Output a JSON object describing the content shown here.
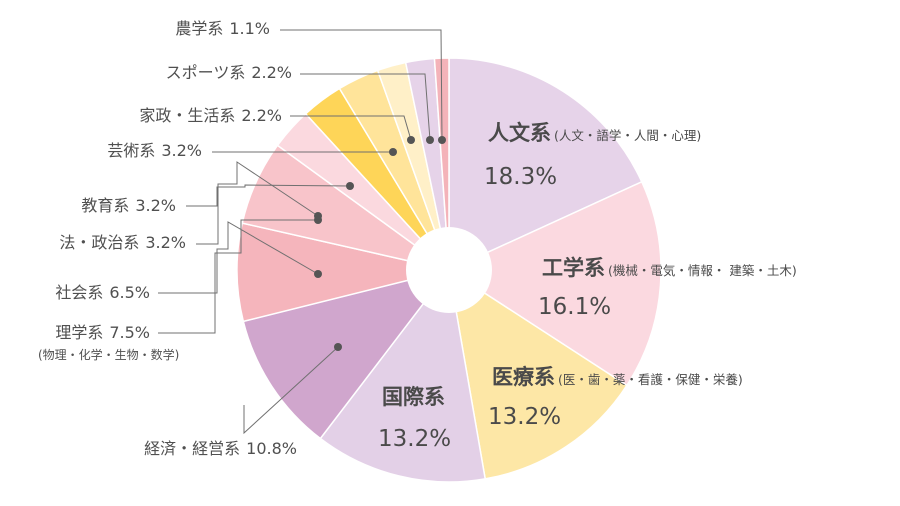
{
  "chart_data": {
    "type": "pie",
    "variant": "donut",
    "start_angle_deg": 0,
    "direction": "clockwise",
    "slices": [
      {
        "label": "人文系",
        "note": "(人文・語学・人間・心理)",
        "value": 18.3,
        "value_text": "18.3%",
        "color": "#e6d3e9"
      },
      {
        "label": "工学系",
        "note": "(機械・電気・情報・ 建築・土木)",
        "value": 16.1,
        "value_text": "16.1%",
        "color": "#fbd9e0"
      },
      {
        "label": "医療系",
        "note": "(医・歯・薬・看護・保健・栄養)",
        "value": 13.2,
        "value_text": "13.2%",
        "color": "#fde7a6"
      },
      {
        "label": "国際系",
        "note": "",
        "value": 13.2,
        "value_text": "13.2%",
        "color": "#e3d0e7"
      },
      {
        "label": "経済・経営系",
        "note": "",
        "value": 10.8,
        "value_text": "10.8%",
        "color": "#d0a6cd"
      },
      {
        "label": "理学系",
        "note": "(物理・化学・生物・数学)",
        "value": 7.5,
        "value_text": "7.5%",
        "color": "#f5b5bc"
      },
      {
        "label": "社会系",
        "note": "",
        "value": 6.5,
        "value_text": "6.5%",
        "color": "#f8c4ca"
      },
      {
        "label": "法・政治系",
        "note": "",
        "value": 3.2,
        "value_text": "3.2%",
        "color": "#fbd9df"
      },
      {
        "label": "教育系",
        "note": "",
        "value": 3.2,
        "value_text": "3.2%",
        "color": "#fed558"
      },
      {
        "label": "芸術系",
        "note": "",
        "value": 3.2,
        "value_text": "3.2%",
        "color": "#ffe49a"
      },
      {
        "label": "家政・生活系",
        "note": "",
        "value": 2.2,
        "value_text": "2.2%",
        "color": "#fff0c8"
      },
      {
        "label": "スポーツ系",
        "note": "",
        "value": 2.2,
        "value_text": "2.2%",
        "color": "#e6d3e9"
      },
      {
        "label": "農学系",
        "note": "",
        "value": 1.1,
        "value_text": "1.1%",
        "color": "#f4b3b9"
      }
    ],
    "legend": "callout-labels"
  }
}
